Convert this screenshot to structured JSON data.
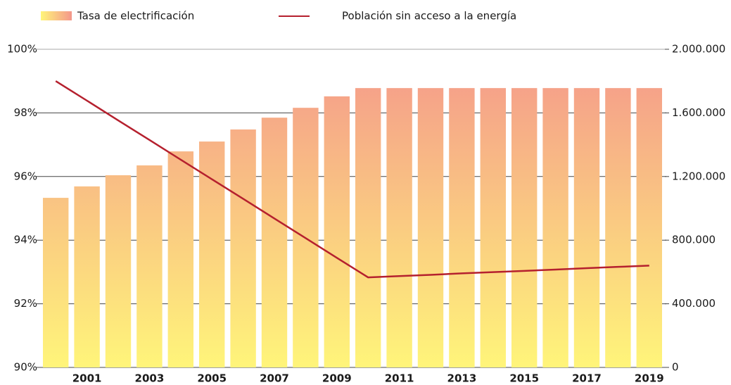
{
  "chart_data": {
    "type": "bar",
    "categories": [
      null,
      "2001",
      null,
      "2003",
      null,
      "2005",
      null,
      "2007",
      null,
      "2009",
      null,
      "2011",
      null,
      "2013",
      null,
      "2015",
      null,
      "2017",
      null,
      "2019"
    ],
    "series": [
      {
        "name": "Tasa de electrificación",
        "type": "bar",
        "color": [
          "#f4978b",
          "#fff57a"
        ],
        "values": [
          95.33,
          95.69,
          96.04,
          96.35,
          96.79,
          97.1,
          97.48,
          97.85,
          98.16,
          98.52,
          98.78,
          98.78,
          98.78,
          98.78,
          98.78,
          98.78,
          98.78,
          98.78,
          98.78,
          98.78
        ]
      },
      {
        "name": "Población sin acceso a la energía",
        "type": "line",
        "axis": "y2",
        "color": "#b5202e",
        "values": [
          1800000,
          1677000,
          1553000,
          1430000,
          1306000,
          1183000,
          1060000,
          936000,
          813000,
          689000,
          566000,
          574000,
          582000,
          591000,
          599000,
          607000,
          615000,
          624000,
          632000,
          640000
        ]
      }
    ],
    "ylim": [
      90,
      100
    ],
    "yticks": [
      {
        "value": 90,
        "label": "90%"
      },
      {
        "value": 92,
        "label": "92%"
      },
      {
        "value": 94,
        "label": "94%"
      },
      {
        "value": 96,
        "label": "96%"
      },
      {
        "value": 98,
        "label": "98%"
      },
      {
        "value": 100,
        "label": "100%"
      }
    ],
    "y2lim": [
      0,
      2000000
    ],
    "y2ticks": [
      0,
      {
        "value": 400000,
        "label": "400.000"
      },
      {
        "value": 800000,
        "label": "800.000"
      },
      {
        "value": 1200000,
        "label": "1.200.000"
      },
      {
        "value": 1600000,
        "label": "1.600.000"
      },
      {
        "value": 2000000,
        "label": "2.000.000"
      }
    ],
    "grid": true,
    "legend": "top"
  }
}
